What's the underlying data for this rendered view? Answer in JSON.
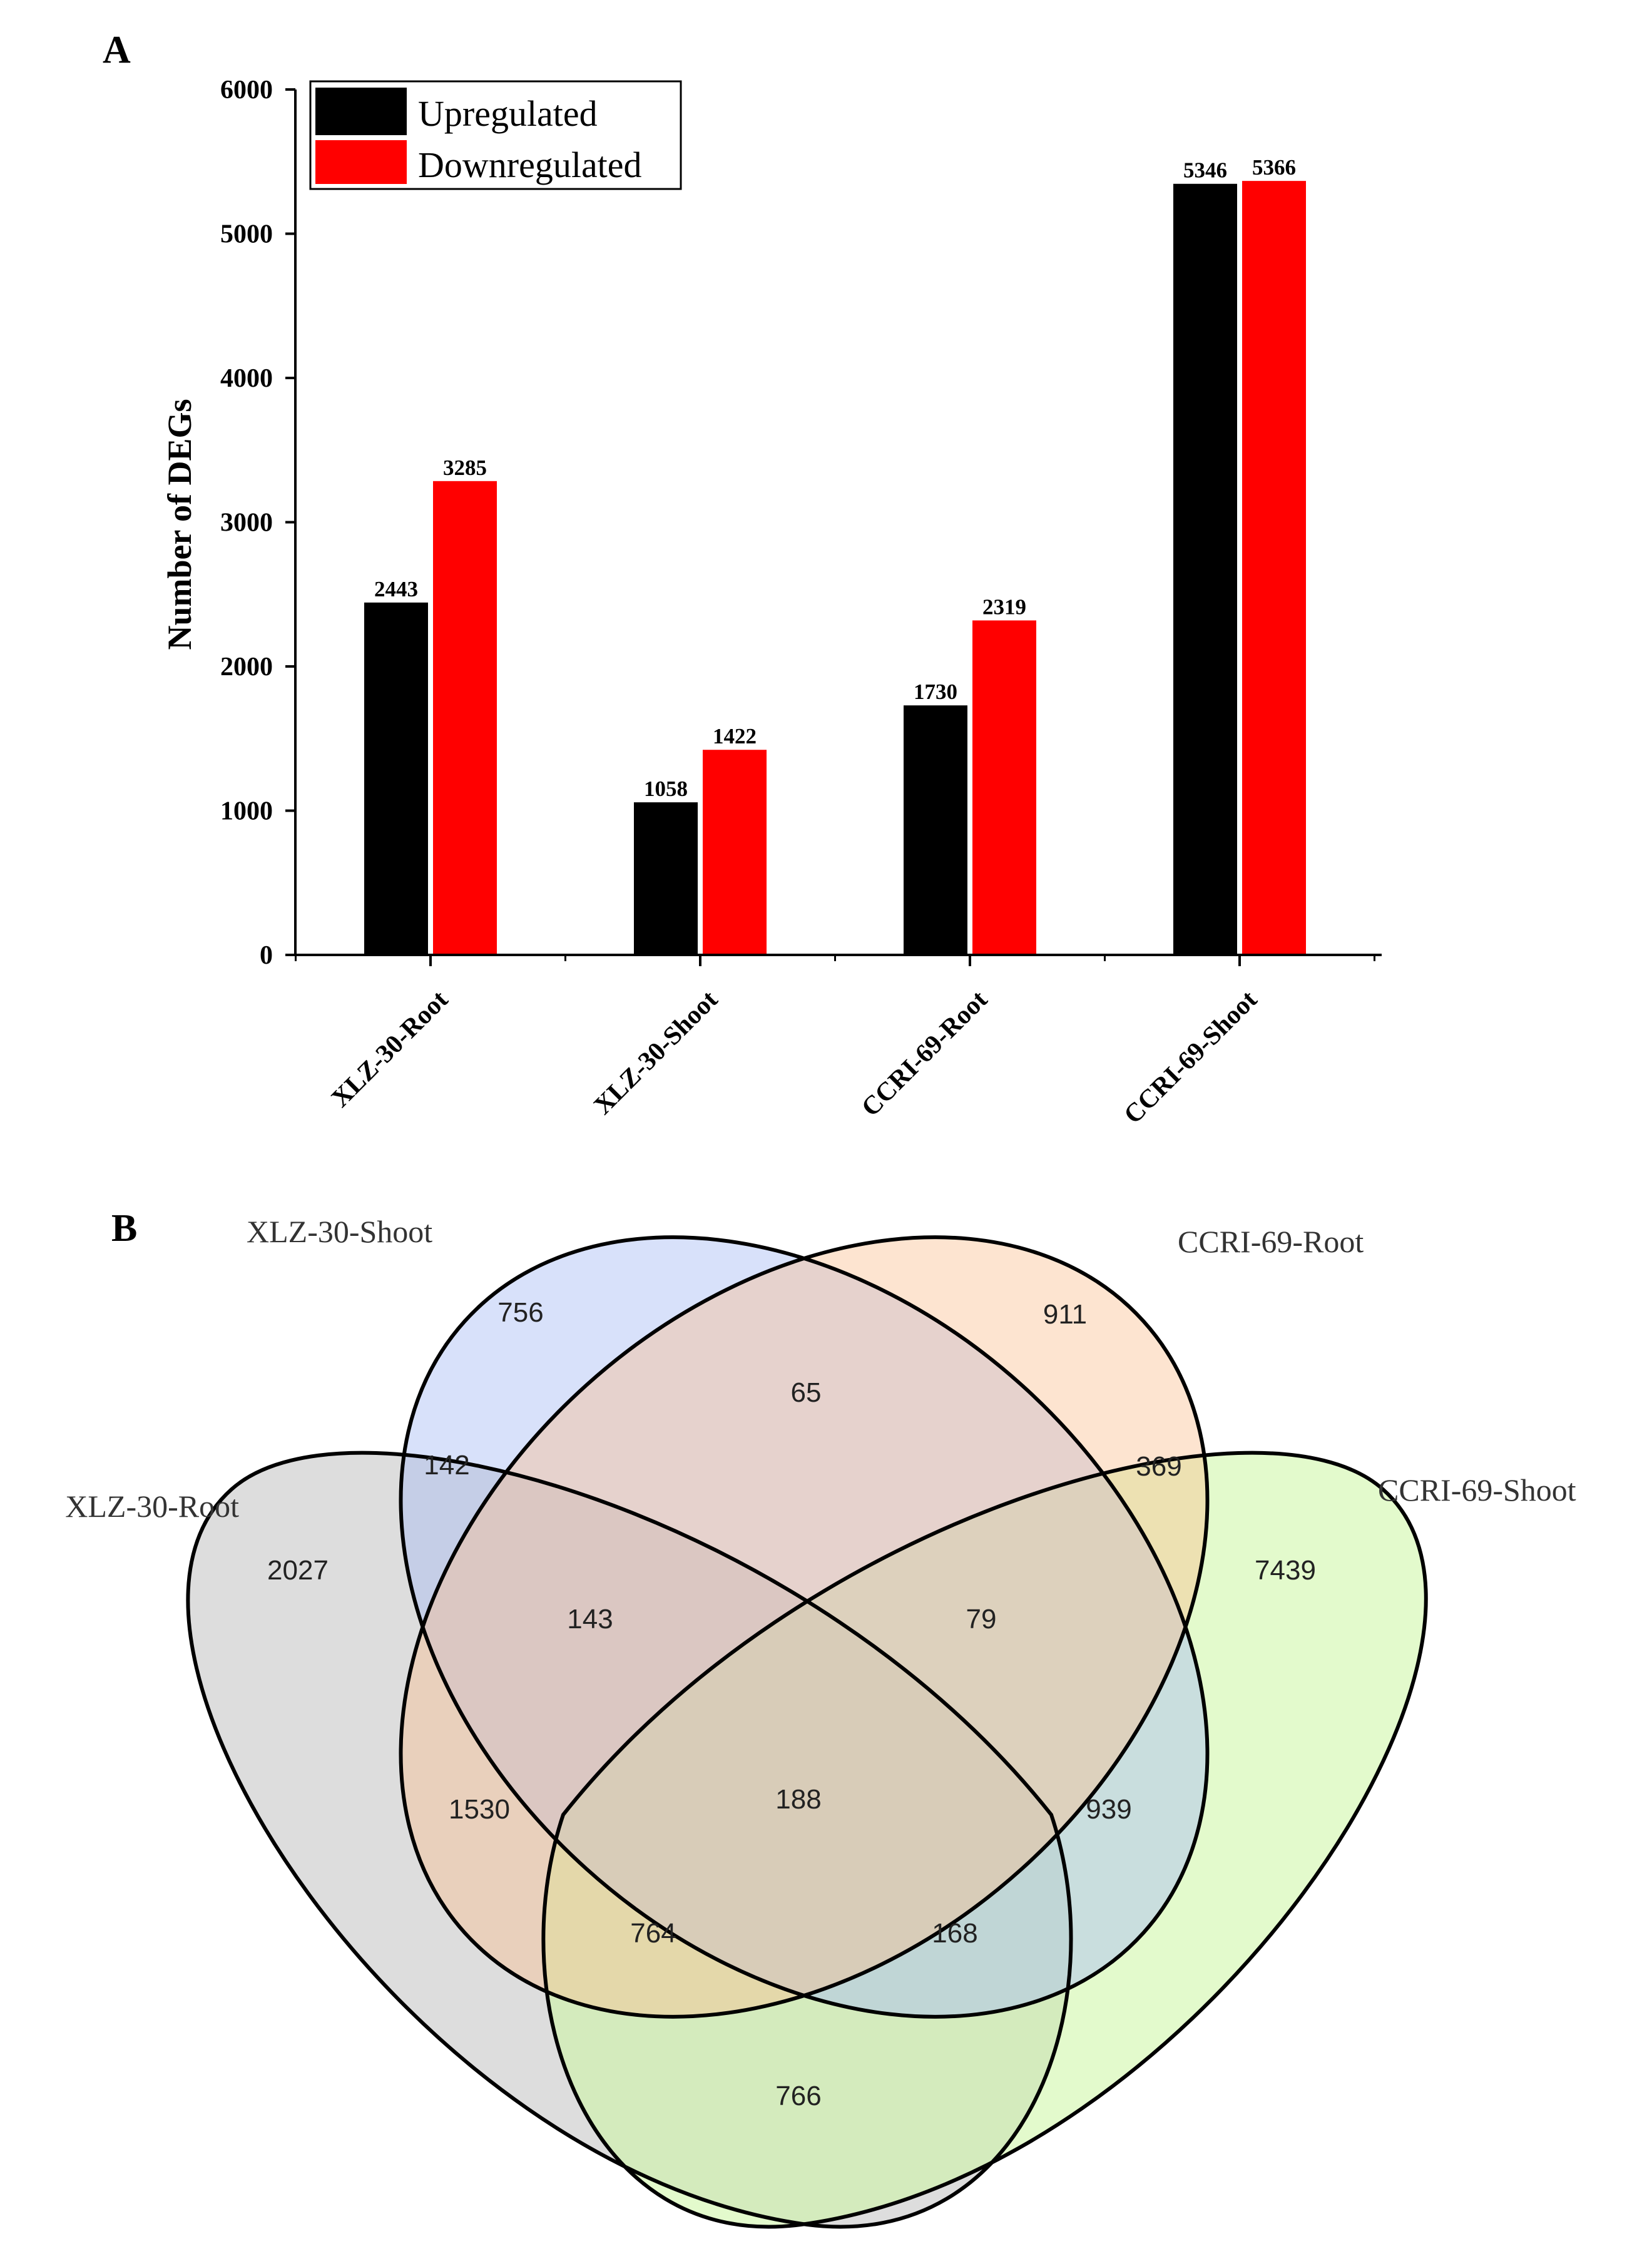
{
  "chart_data": [
    {
      "panel": "A",
      "type": "bar",
      "ylabel": "Number of DEGs",
      "ylim": [
        0,
        6000
      ],
      "yticks": [
        0,
        1000,
        2000,
        3000,
        4000,
        5000,
        6000
      ],
      "grid": false,
      "legend_position": "top-left",
      "categories": [
        "XLZ-30-Root",
        "XLZ-30-Shoot",
        "CCRI-69-Root",
        "CCRI-69-Shoot"
      ],
      "series": [
        {
          "name": "Upregulated",
          "color": "#000000",
          "values": [
            2443,
            1058,
            1730,
            5346
          ]
        },
        {
          "name": "Downregulated",
          "color": "#ff0000",
          "values": [
            3285,
            1422,
            2319,
            5366
          ]
        }
      ]
    },
    {
      "panel": "B",
      "type": "venn",
      "sets": [
        {
          "name": "XLZ-30-Root",
          "color": "#c8c8c8"
        },
        {
          "name": "XLZ-30-Shoot",
          "color": "#b6c6f4"
        },
        {
          "name": "CCRI-69-Root",
          "color": "#fbd0b0"
        },
        {
          "name": "CCRI-69-Shoot",
          "color": "#d6f7b4"
        }
      ],
      "regions": {
        "shoot_only": 756,
        "ccri_root_only": 911,
        "xlz_root_only": 2027,
        "ccri_shoot_only": 7439,
        "shoot_ccriroot": 65,
        "xlzroot_shoot": 142,
        "ccriroot_ccrishoot": 369,
        "xlzroot_shoot_ccriroot": 143,
        "shoot_ccriroot_ccrishoot": 79,
        "xlzroot_ccriroot": 1530,
        "all_four": 188,
        "shoot_ccrishoot": 939,
        "xlzroot_ccriroot_ccrishoot": 764,
        "xlzroot_shoot_ccrishoot": 168,
        "xlzroot_ccrishoot": 766
      }
    }
  ]
}
